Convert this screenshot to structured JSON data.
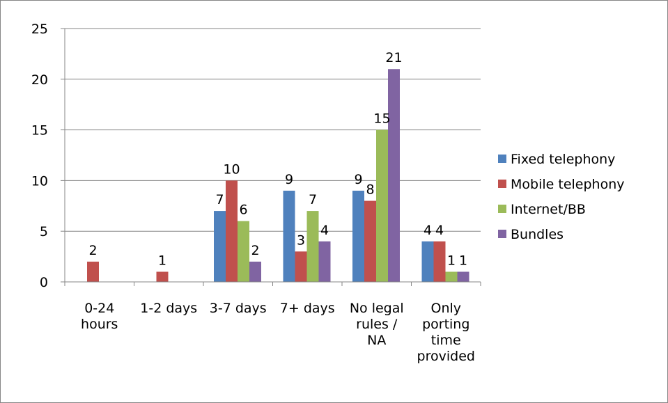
{
  "chart_data": {
    "type": "bar",
    "categories": [
      [
        "0-24",
        "hours"
      ],
      [
        "1-2 days"
      ],
      [
        "3-7 days"
      ],
      [
        "7+ days"
      ],
      [
        "No legal",
        "rules /",
        "NA"
      ],
      [
        "Only",
        "porting",
        "time",
        "provided"
      ]
    ],
    "series": [
      {
        "name": "Fixed telephony",
        "color": "#4F81BD",
        "values": [
          null,
          null,
          7,
          9,
          9,
          4
        ]
      },
      {
        "name": "Mobile telephony",
        "color": "#C0504D",
        "values": [
          2,
          1,
          10,
          3,
          8,
          4
        ]
      },
      {
        "name": "Internet/BB",
        "color": "#9BBB59",
        "values": [
          null,
          null,
          6,
          7,
          15,
          1
        ]
      },
      {
        "name": "Bundles",
        "color": "#8064A2",
        "values": [
          null,
          null,
          2,
          4,
          21,
          1
        ]
      }
    ],
    "yticks": [
      0,
      5,
      10,
      15,
      20,
      25
    ],
    "ylim": [
      0,
      25
    ],
    "title": "",
    "xlabel": "",
    "ylabel": "",
    "grid": true,
    "legend_position": "right"
  }
}
